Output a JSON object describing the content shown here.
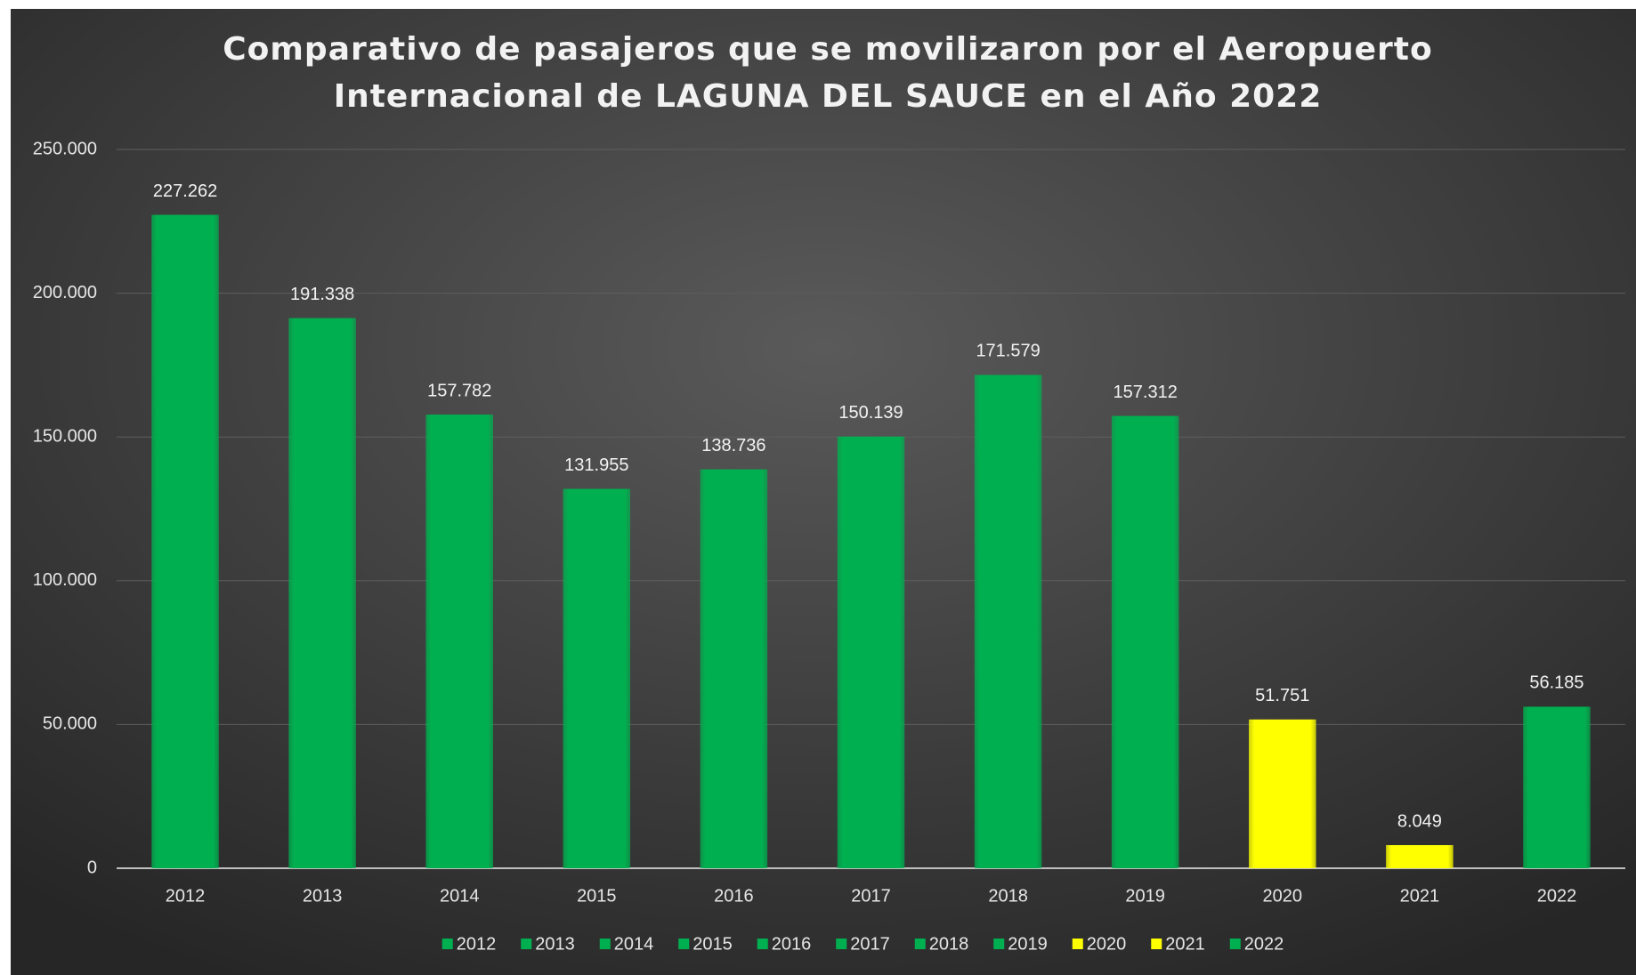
{
  "chart_data": {
    "type": "bar",
    "title": [
      "Comparativo de pasajeros que se movilizaron por el Aeropuerto",
      "Internacional de LAGUNA DEL SAUCE en el Año 2022"
    ],
    "categories": [
      "2012",
      "2013",
      "2014",
      "2015",
      "2016",
      "2017",
      "2018",
      "2019",
      "2020",
      "2021",
      "2022"
    ],
    "values": [
      227262,
      191338,
      157782,
      131955,
      138736,
      150139,
      171579,
      157312,
      51751,
      8049,
      56185
    ],
    "value_labels": [
      "227.262",
      "191.338",
      "157.782",
      "131.955",
      "138.736",
      "150.139",
      "171.579",
      "157.312",
      "51.751",
      "8.049",
      "56.185"
    ],
    "colors": [
      "#00b050",
      "#00b050",
      "#00b050",
      "#00b050",
      "#00b050",
      "#00b050",
      "#00b050",
      "#00b050",
      "#ffff00",
      "#ffff00",
      "#00b050"
    ],
    "ylim": [
      0,
      250000
    ],
    "yticks": [
      0,
      {
        "value": 50000,
        "label": "50.000"
      },
      {
        "value": 100000,
        "label": "100.000"
      },
      {
        "value": 150000,
        "label": "150.000"
      },
      {
        "value": 200000,
        "label": "200.000"
      },
      {
        "value": 250000,
        "label": "250.000"
      }
    ],
    "grid": true,
    "legend": "bottom"
  }
}
